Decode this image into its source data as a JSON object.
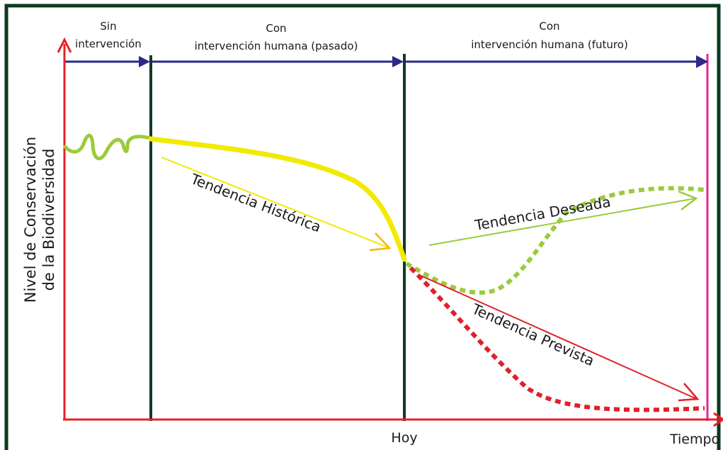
{
  "phases": {
    "sin_top": "Sin",
    "sin_bottom": "intervención",
    "pasado_top": "Con",
    "pasado_bottom": "intervención humana (pasado)",
    "futuro_top": "Con",
    "futuro_bottom": "intervención humana (futuro)"
  },
  "axes": {
    "y_line1": "Nivel de Conservación",
    "y_line2": "de la Biodiversidad",
    "x_label": "Tiempo",
    "today_label": "Hoy"
  },
  "trends": {
    "historica": "Tendencia Histórica",
    "deseada": "Tendencia Deseada",
    "prevista": "Tendencia Prevista"
  },
  "colors": {
    "frame": "#0b3a1e",
    "axis": "#e8202a",
    "timeline": "#2a2a8a",
    "divider": "#123a24",
    "end_line": "#e0259a",
    "historic": "#f2ea00",
    "historic_arrow": "#f5b800",
    "desired": "#9acb3c",
    "expected": "#e0202a"
  }
}
